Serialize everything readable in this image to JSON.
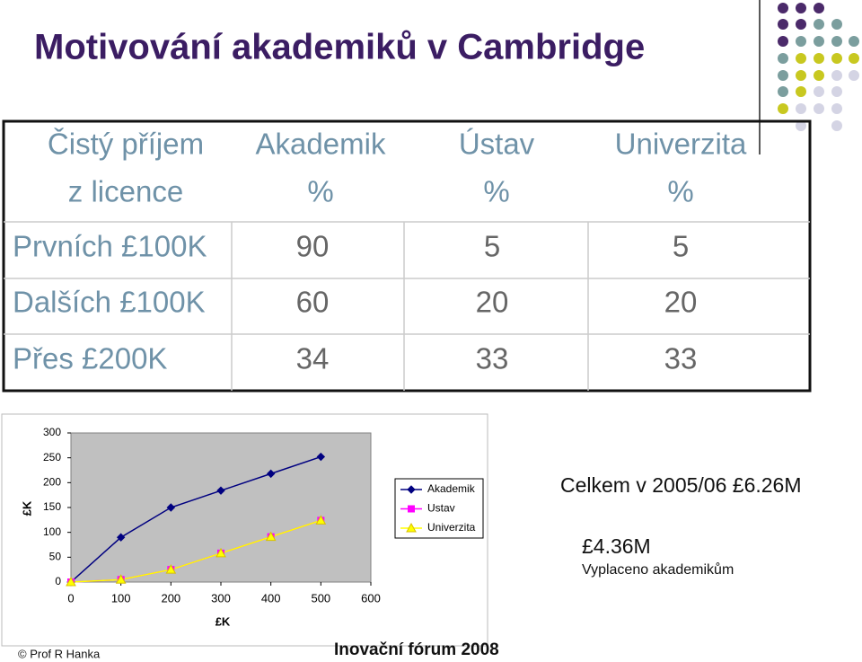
{
  "title": "Motivování akademiků v Cambridge",
  "table": {
    "header": [
      [
        "Čistý příjem",
        "z licence"
      ],
      [
        "Akademik",
        "%"
      ],
      [
        "Ústav",
        "%"
      ],
      [
        "Univerzita",
        "%"
      ]
    ],
    "rows": [
      [
        "Prvních £100K",
        "90",
        "5",
        "5"
      ],
      [
        "Dalších £100K",
        "60",
        "20",
        "20"
      ],
      [
        "Přes £200K",
        "34",
        "33",
        "33"
      ]
    ]
  },
  "chart_data": {
    "type": "line",
    "x": [
      0,
      100,
      200,
      300,
      400,
      500
    ],
    "series": [
      {
        "name": "Akademik",
        "color": "#000080",
        "marker": "diamond",
        "values": [
          0,
          90,
          150,
          184,
          218,
          252
        ]
      },
      {
        "name": "Ustav",
        "color": "#ff00ff",
        "marker": "square",
        "values": [
          0,
          5,
          25,
          58,
          91,
          124
        ]
      },
      {
        "name": "Univerzita",
        "color": "#ffff00",
        "marker": "triangle",
        "values": [
          0,
          5,
          25,
          58,
          91,
          124
        ]
      }
    ],
    "xlabel": "£K",
    "ylabel": "£K",
    "xlim": [
      0,
      600
    ],
    "xticks": [
      0,
      100,
      200,
      300,
      400,
      500,
      600
    ],
    "ylim": [
      0,
      300
    ],
    "yticks": [
      0,
      50,
      100,
      150,
      200,
      250,
      300
    ],
    "legend": "right"
  },
  "notes": {
    "total": "Celkem v 2005/06 £6.26M",
    "paid_value": "£4.36M",
    "paid_label": "Vyplaceno akademikům"
  },
  "footer": {
    "author": "© Prof R Hanka",
    "event": "Inovační fórum 2008"
  }
}
